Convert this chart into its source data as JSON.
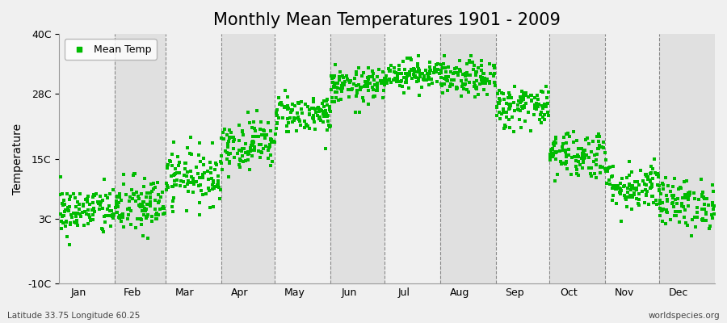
{
  "title": "Monthly Mean Temperatures 1901 - 2009",
  "ylabel": "Temperature",
  "bottom_left_text": "Latitude 33.75 Longitude 60.25",
  "bottom_right_text": "worldspecies.org",
  "legend_label": "Mean Temp",
  "months": [
    "Jan",
    "Feb",
    "Mar",
    "Apr",
    "May",
    "Jun",
    "Jul",
    "Aug",
    "Sep",
    "Oct",
    "Nov",
    "Dec"
  ],
  "month_days": [
    31,
    28,
    31,
    30,
    31,
    30,
    31,
    31,
    30,
    31,
    30,
    31
  ],
  "month_means": [
    4.5,
    5.5,
    11.5,
    18.0,
    24.0,
    29.5,
    32.0,
    31.0,
    25.5,
    16.0,
    9.5,
    6.0
  ],
  "month_stds": [
    2.5,
    3.0,
    2.8,
    2.5,
    2.0,
    1.8,
    1.5,
    1.8,
    2.2,
    2.5,
    2.5,
    2.5
  ],
  "n_years": 109,
  "ylim": [
    -10,
    40
  ],
  "yticks": [
    -10,
    3,
    15,
    28,
    40
  ],
  "ytick_labels": [
    "-10C",
    "3C",
    "15C",
    "28C",
    "40C"
  ],
  "dot_color": "#00bb00",
  "dot_size": 5,
  "background_color": "#f0f0f0",
  "band_color_light": "#f0f0f0",
  "band_color_dark": "#e0e0e0",
  "title_fontsize": 15,
  "axis_fontsize": 10,
  "tick_fontsize": 9,
  "seed": 42
}
